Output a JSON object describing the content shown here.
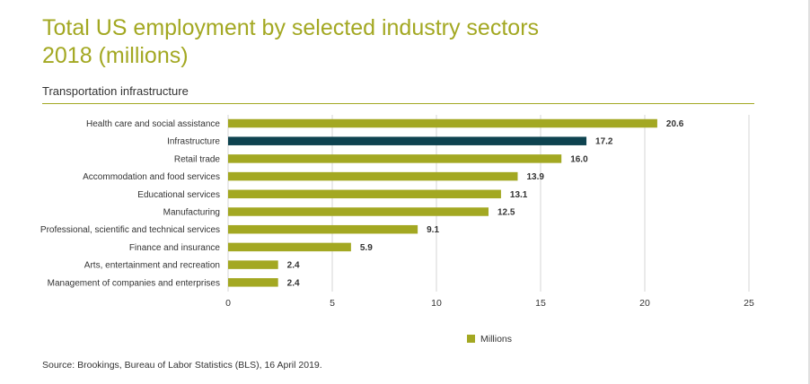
{
  "title_line1": "Total US employment by selected industry sectors",
  "title_line2": "2018 (millions)",
  "subtitle": "Transportation infrastructure",
  "source": "Source: Brookings, Bureau of Labor Statistics (BLS), 16 April 2019.",
  "colors": {
    "accent": "#a3a822",
    "highlight": "#0e4350",
    "grid": "#d4d4d4",
    "text": "#333333"
  },
  "chart_data": {
    "type": "bar",
    "orientation": "horizontal",
    "categories": [
      "Health care and social assistance",
      "Infrastructure",
      "Retail trade",
      "Accommodation and food services",
      "Educational services",
      "Manufacturing",
      "Professional, scientific and technical services",
      "Finance and insurance",
      "Arts, entertainment and recreation",
      "Management of companies and enterprises"
    ],
    "values": [
      20.6,
      17.2,
      16.0,
      13.9,
      13.1,
      12.5,
      9.1,
      5.9,
      2.4,
      2.4
    ],
    "value_labels": [
      "20.6",
      "17.2",
      "16.0",
      "13.9",
      "13.1",
      "12.5",
      "9.1",
      "5.9",
      "2.4",
      "2.4"
    ],
    "highlight_index": 1,
    "xlim": [
      0,
      25
    ],
    "xticks": [
      0,
      5,
      10,
      15,
      20,
      25
    ],
    "grid": true,
    "legend": {
      "label": "Millions",
      "placement": "bottom-center"
    }
  }
}
